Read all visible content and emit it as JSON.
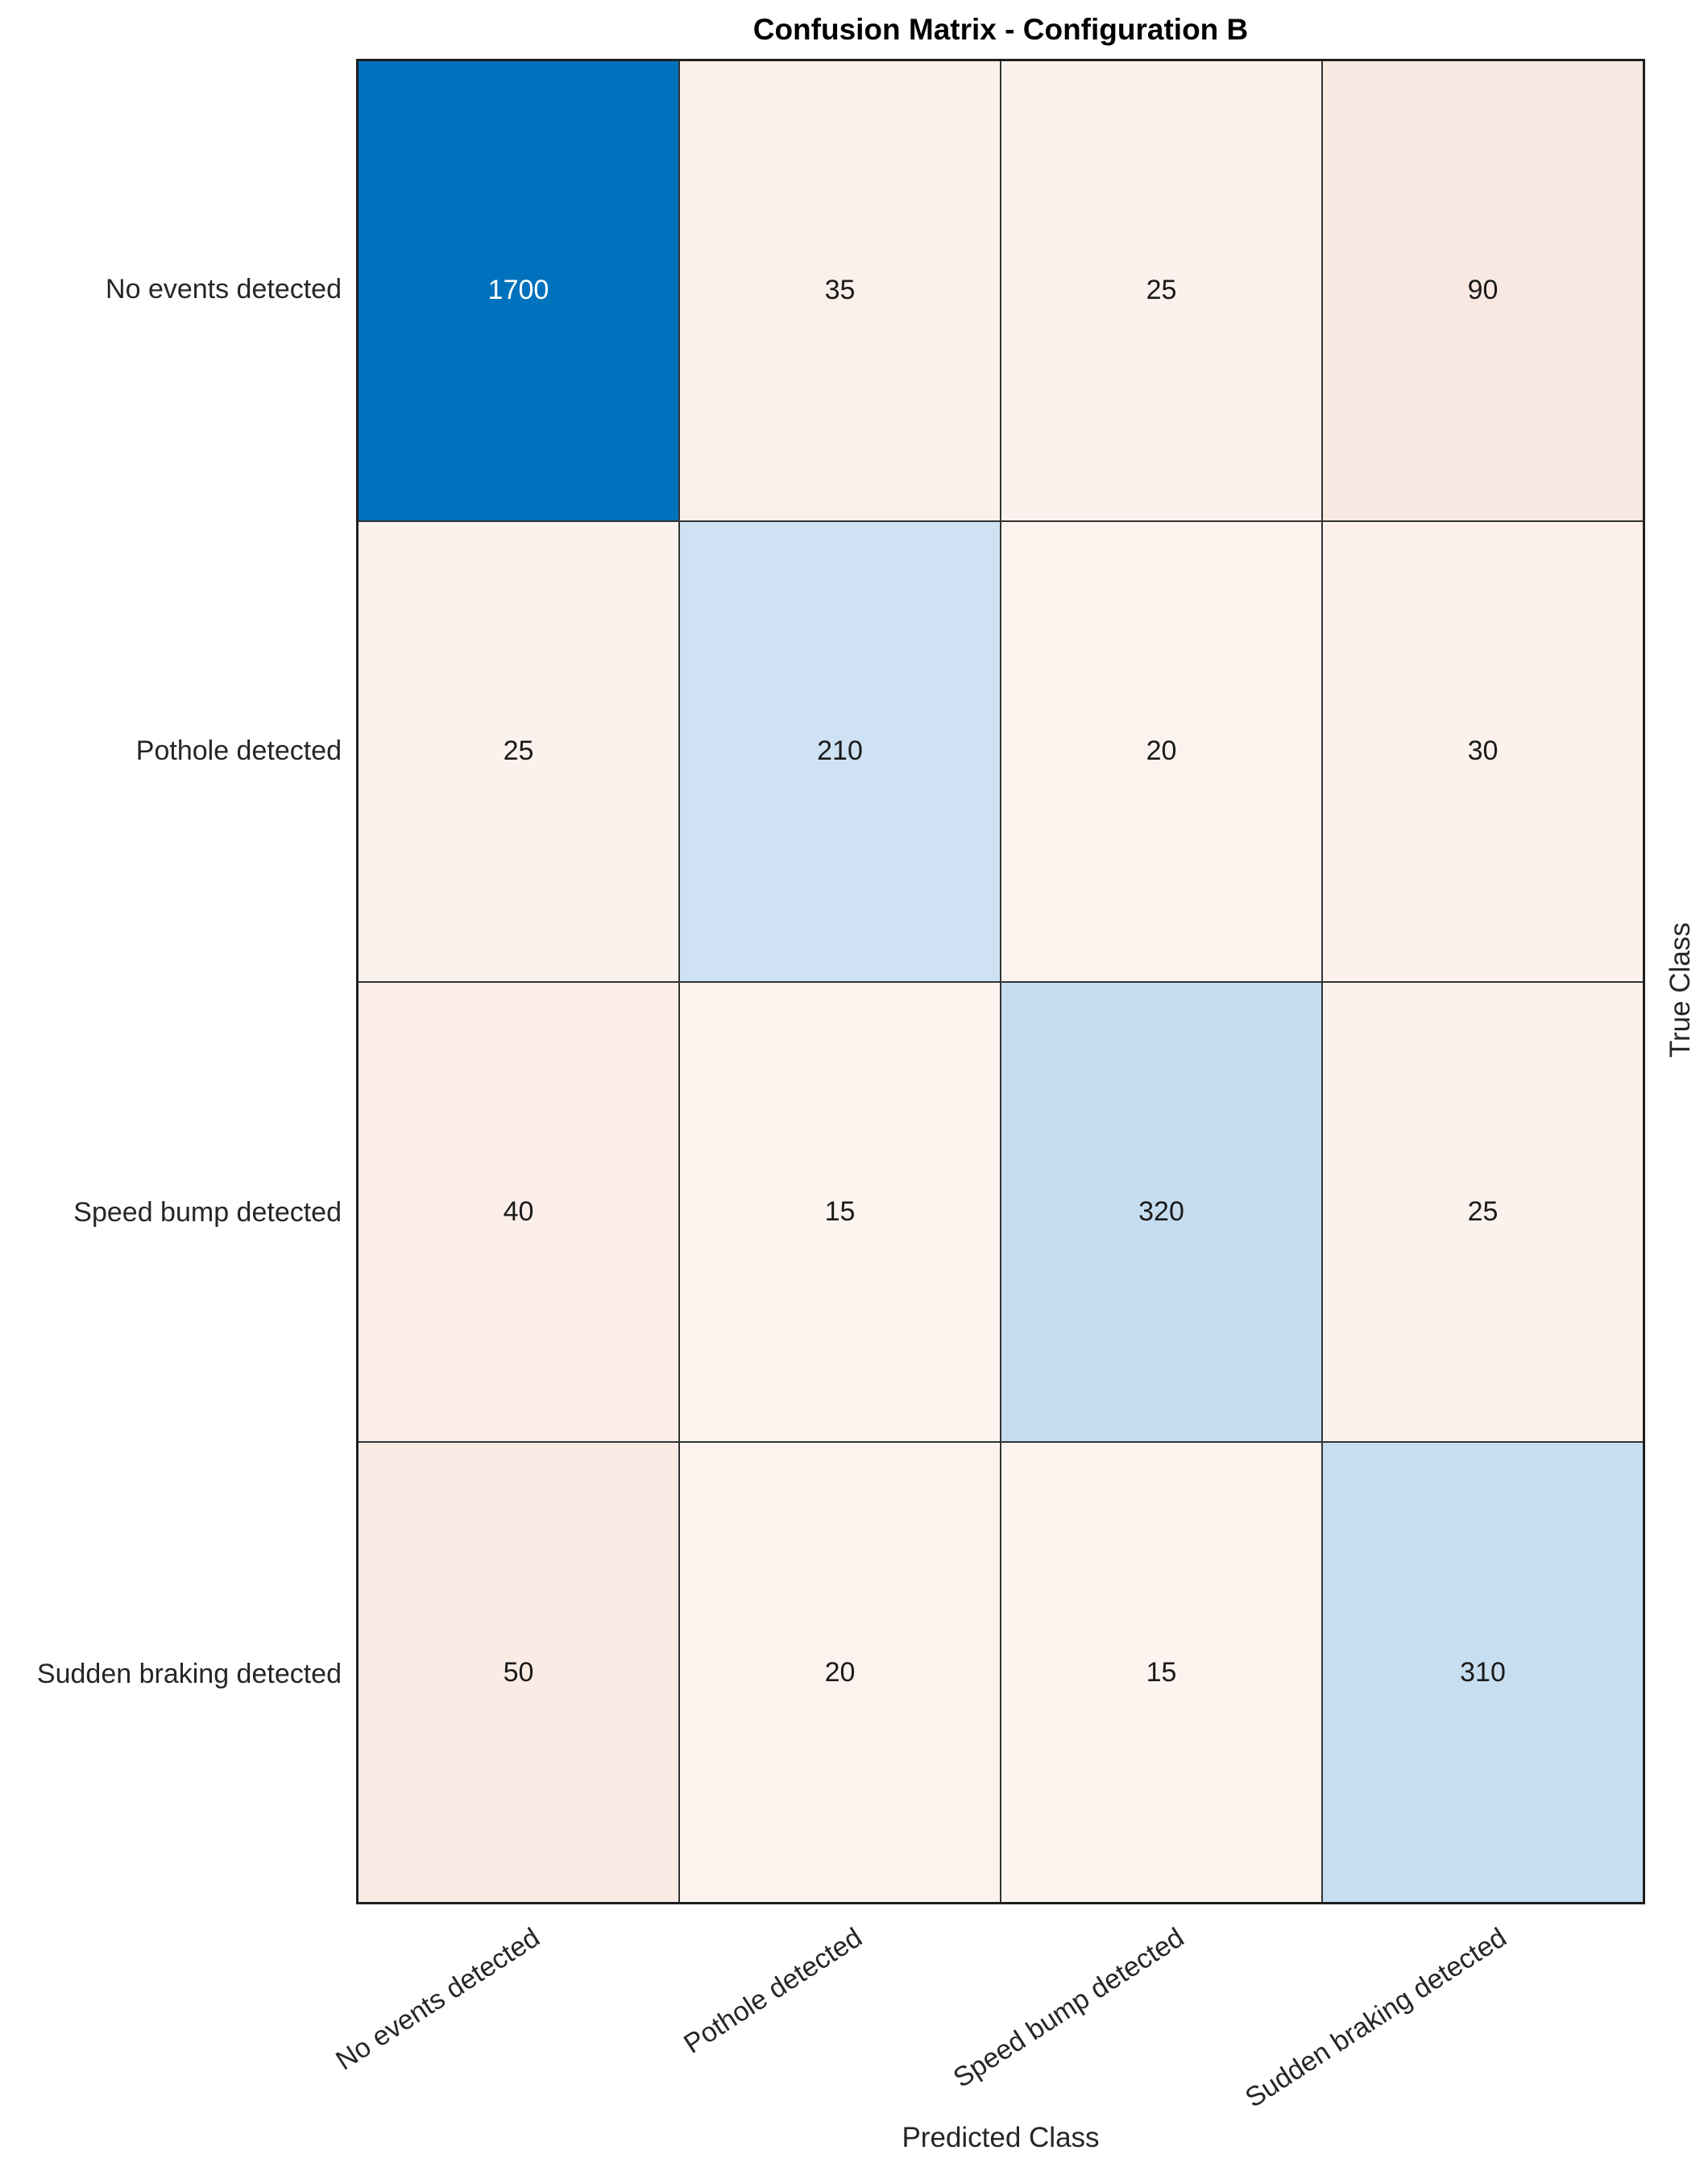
{
  "chart_data": {
    "type": "heatmap",
    "title": "Confusion Matrix - Configuration B",
    "xlabel": "Predicted Class",
    "ylabel": "True Class",
    "classes": [
      "No events detected",
      "Pothole detected",
      "Speed bump detected",
      "Sudden braking detected"
    ],
    "matrix": [
      [
        1700,
        35,
        25,
        90
      ],
      [
        25,
        210,
        20,
        30
      ],
      [
        40,
        15,
        320,
        25
      ],
      [
        50,
        20,
        15,
        310
      ]
    ],
    "cell_colors": [
      [
        "#0072BD",
        "#FBF0EA",
        "#FCF2ED",
        "#F9E8E1"
      ],
      [
        "#FCF2ED",
        "#CFE2F3",
        "#FDF3EE",
        "#FCF1EB"
      ],
      [
        "#FBEEE8",
        "#FDF4F0",
        "#C6DDF0",
        "#FCF2ED"
      ],
      [
        "#FAECE5",
        "#FDF3EE",
        "#FDF4F0",
        "#C7DEF1"
      ]
    ],
    "cell_text_colors": [
      [
        "#FFFFFF",
        "#1A1A1A",
        "#1A1A1A",
        "#1A1A1A"
      ],
      [
        "#1A1A1A",
        "#1A1A1A",
        "#1A1A1A",
        "#1A1A1A"
      ],
      [
        "#1A1A1A",
        "#1A1A1A",
        "#1A1A1A",
        "#1A1A1A"
      ],
      [
        "#1A1A1A",
        "#1A1A1A",
        "#1A1A1A",
        "#1A1A1A"
      ]
    ],
    "grid_line_color": "#333333",
    "axis_border_color": "#1F1F1F",
    "tick_label_color": "#262626",
    "x_tick_rotation_deg": 33,
    "legend": "none",
    "grid": "cell-borders"
  }
}
